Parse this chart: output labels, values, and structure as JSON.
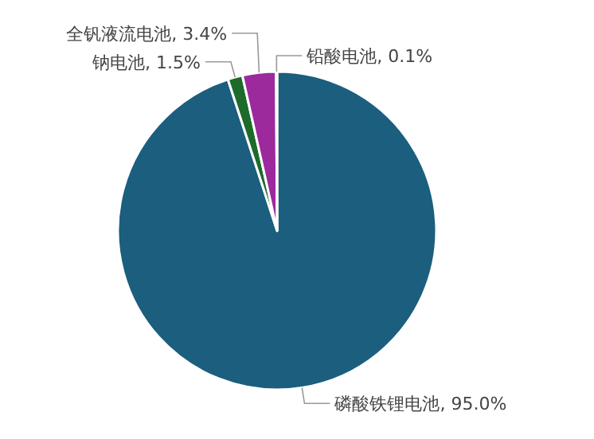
{
  "chart_data": {
    "type": "pie",
    "categories": [
      "磷酸铁锂电池",
      "钠电池",
      "全钒液流电池",
      "铅酸电池"
    ],
    "values": [
      95.0,
      1.5,
      3.4,
      0.1
    ],
    "value_labels": [
      "95.0%",
      "1.5%",
      "3.4%",
      "0.1%"
    ],
    "colors": [
      "#1b5e7e",
      "#1d6b2a",
      "#9c2a9c",
      "#d9c7d9"
    ]
  }
}
